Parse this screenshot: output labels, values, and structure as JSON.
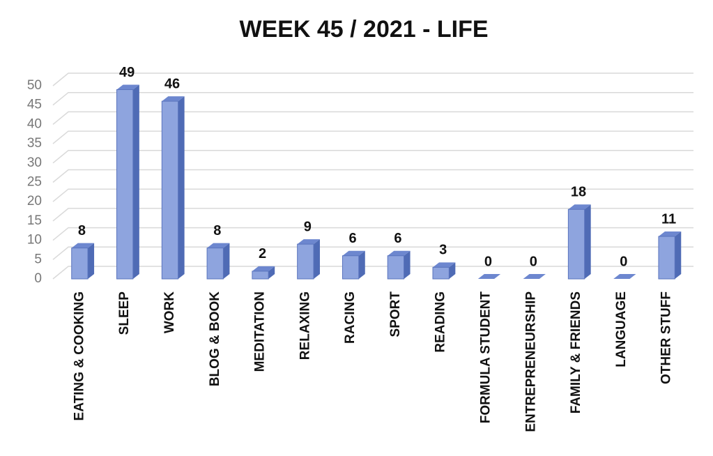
{
  "chart_data": {
    "type": "bar3d",
    "title": "WEEK 45  / 2021 - LIFE",
    "categories": [
      "EATING & COOKING",
      "SLEEP",
      "WORK",
      "BLOG & BOOK",
      "MEDITATION",
      "RELAXING",
      "RACING",
      "SPORT",
      "READING",
      "FORMULA STUDENT",
      "ENTREPRENEURSHIP",
      "FAMILY & FRIENDS",
      "LANGUAGE",
      "OTHER STUFF"
    ],
    "values": [
      8,
      49,
      46,
      8,
      2,
      9,
      6,
      6,
      3,
      0,
      0,
      18,
      0,
      11
    ],
    "color": "#8ea4de",
    "ylim": [
      0,
      50
    ],
    "yticks": [
      0,
      5,
      10,
      15,
      20,
      25,
      30,
      35,
      40,
      45,
      50
    ],
    "grid": true
  }
}
